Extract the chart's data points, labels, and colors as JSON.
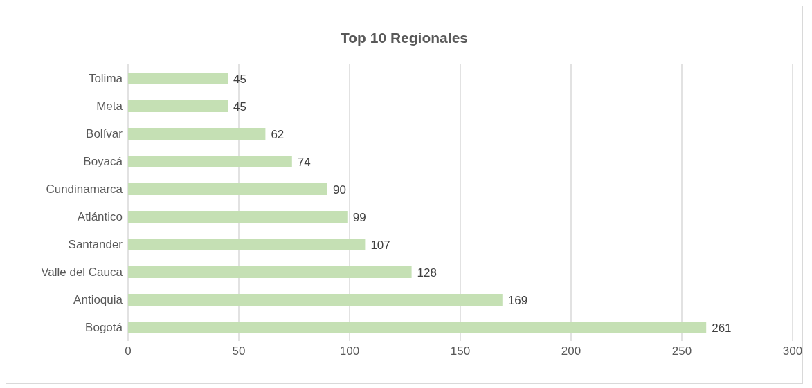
{
  "chart_data": {
    "type": "bar",
    "orientation": "horizontal",
    "title": "Top 10 Regionales",
    "categories": [
      "Tolima",
      "Meta",
      "Bolívar",
      "Boyacá",
      "Cundinamarca",
      "Atlántico",
      "Santander",
      "Valle del Cauca",
      "Antioquia",
      "Bogotá"
    ],
    "values": [
      45,
      45,
      62,
      74,
      90,
      99,
      107,
      128,
      169,
      261
    ],
    "color": "#c5e0b4",
    "xlim": [
      0,
      300
    ],
    "xticks": [
      0,
      50,
      100,
      150,
      200,
      250,
      300
    ],
    "grid": "x",
    "data_labels": true
  }
}
